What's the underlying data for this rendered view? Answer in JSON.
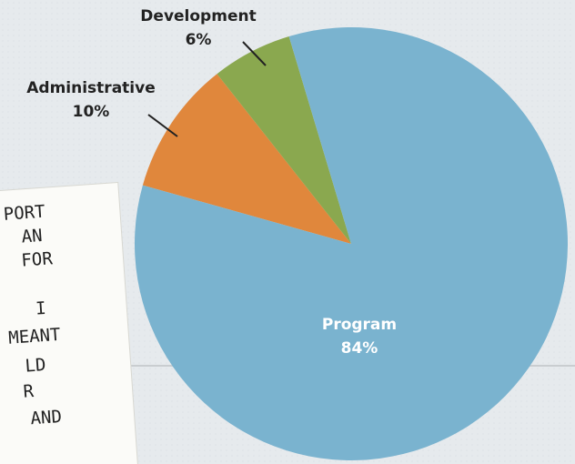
{
  "chart_data": {
    "type": "pie",
    "categories": [
      "Administrative",
      "Development",
      "Program"
    ],
    "values": [
      10,
      6,
      84
    ],
    "value_labels": [
      "10%",
      "6%",
      "84%"
    ],
    "colors": [
      "#e0873c",
      "#8aa84f",
      "#7ab3cf"
    ]
  },
  "note": {
    "lines": [
      "PORT",
      "AN",
      "FOR",
      "I",
      "MEANT",
      "LD",
      "R",
      "AND"
    ]
  }
}
